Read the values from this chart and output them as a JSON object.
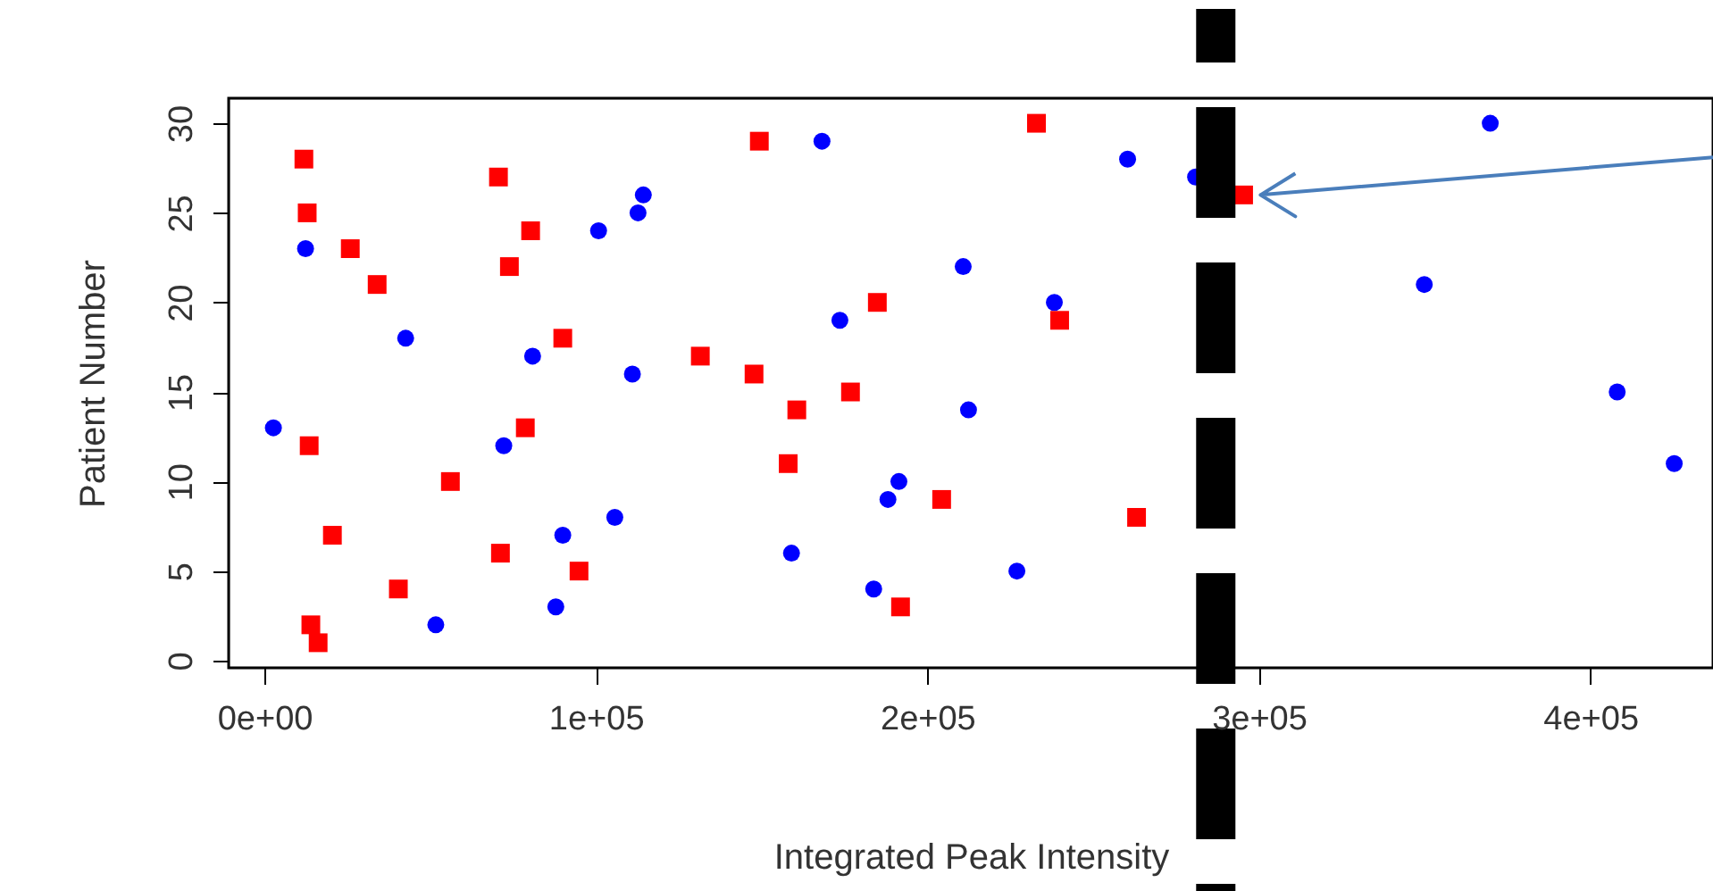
{
  "chart_data": {
    "type": "scatter",
    "xlabel": "Integrated Peak Intensity",
    "ylabel": "Patient Number",
    "xlim": [
      -10800,
      437000
    ],
    "ylim": [
      -0.4,
      31.4
    ],
    "xticks": [
      {
        "value": 0,
        "label": "0e+00"
      },
      {
        "value": 100000,
        "label": "1e+05"
      },
      {
        "value": 200000,
        "label": "2e+05"
      },
      {
        "value": 300000,
        "label": "3e+05"
      },
      {
        "value": 400000,
        "label": "4e+05"
      }
    ],
    "yticks": [
      0,
      5,
      10,
      15,
      20,
      25,
      30
    ],
    "grid": false,
    "series": [
      {
        "color": "#0000ff",
        "marker": "circle",
        "x": [
          2700,
          12400,
          42600,
          51700,
          72200,
          80900,
          87900,
          90000,
          100800,
          105700,
          111000,
          112700,
          114300,
          159000,
          168200,
          173600,
          183800,
          188100,
          191400,
          210800,
          212400,
          227000,
          238300,
          260400,
          280900,
          369800,
          349900,
          408100,
          425300
        ],
        "values": [
          13,
          23,
          18,
          2,
          12,
          17,
          3,
          7,
          24,
          8,
          16,
          25,
          26,
          6,
          29,
          19,
          4,
          9,
          10,
          22,
          14,
          5,
          20,
          28,
          27,
          30,
          21,
          15,
          11
        ]
      },
      {
        "color": "#ff0000",
        "marker": "square",
        "x": [
          11900,
          12900,
          13500,
          14000,
          16200,
          20500,
          25900,
          34000,
          40400,
          56100,
          70600,
          71200,
          73900,
          80300,
          78700,
          90000,
          94900,
          131500,
          147700,
          149300,
          158000,
          160600,
          176800,
          184900,
          191900,
          204300,
          232900,
          239900,
          263100,
          295400
        ],
        "values": [
          28,
          25,
          12,
          2,
          1,
          7,
          23,
          21,
          4,
          10,
          27,
          6,
          22,
          24,
          13,
          18,
          5,
          17,
          16,
          29,
          11,
          14,
          15,
          20,
          3,
          9,
          30,
          19,
          8,
          26
        ]
      },
      {
        "color": "#4a7ebb",
        "type": "line",
        "x": [
          311000,
          300500,
          311000,
          300500,
          437000
        ],
        "values": [
          27.2,
          26.0,
          24.8,
          26.0,
          28.1
        ]
      }
    ],
    "ref_lines": [
      {
        "axis": "x",
        "value": 287000,
        "color": "#000000",
        "line_style": "dashed"
      }
    ]
  }
}
